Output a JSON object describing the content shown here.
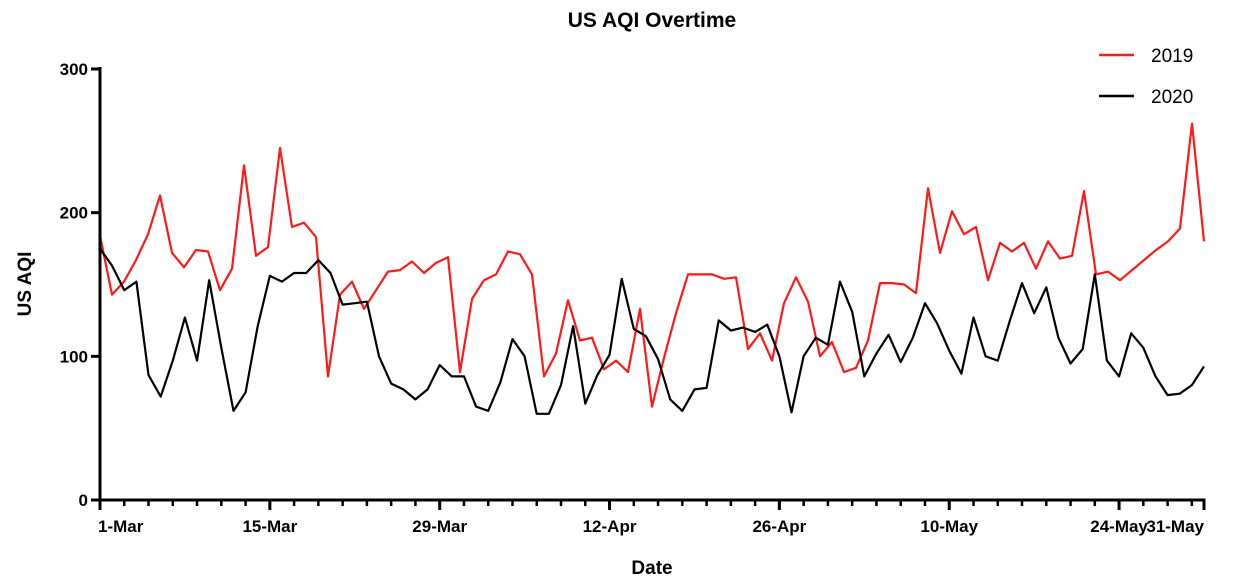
{
  "chart_data": {
    "type": "line",
    "title": "US AQI Overtime",
    "xlabel": "Date",
    "ylabel": "US AQI",
    "ylim": [
      0,
      300
    ],
    "yticks": [
      "0",
      "100",
      "200",
      "300"
    ],
    "x_tick_labels": [
      "1-Mar",
      "15-Mar",
      "29-Mar",
      "12-Apr",
      "26-Apr",
      "10-May",
      "24-May",
      "31-May"
    ],
    "x_tick_days": [
      0,
      14,
      28,
      42,
      56,
      70,
      84,
      91
    ],
    "xlim_days": [
      0,
      91
    ],
    "legend_position": "top-right",
    "colors": {
      "2019": "#ff1a1a",
      "2020": "#000000"
    },
    "series": [
      {
        "name": "2019",
        "values": [
          184,
          143,
          152,
          167,
          185,
          212,
          172,
          162,
          174,
          173,
          146,
          161,
          233,
          170,
          176,
          245,
          190,
          193,
          183,
          86,
          143,
          152,
          133,
          146,
          159,
          160,
          166,
          158,
          165,
          169,
          89,
          140,
          153,
          157,
          173,
          171,
          157,
          86,
          102,
          139,
          111,
          113,
          91,
          97,
          89,
          133,
          65,
          99,
          130,
          157,
          157,
          157,
          154,
          155,
          105,
          116,
          97,
          137,
          155,
          138,
          100,
          110,
          89,
          92,
          111,
          151,
          151,
          150,
          144,
          217,
          172,
          201,
          185,
          190,
          153,
          179,
          173,
          179,
          161,
          180,
          168,
          170,
          215,
          157,
          159,
          153,
          160,
          167,
          174,
          180,
          189,
          262,
          180
        ]
      },
      {
        "name": "2020",
        "values": [
          175,
          163,
          146,
          152,
          87,
          72,
          97,
          127,
          97,
          153,
          106,
          62,
          75,
          121,
          156,
          152,
          158,
          158,
          167,
          158,
          136,
          137,
          138,
          100,
          81,
          77,
          70,
          77,
          94,
          86,
          86,
          65,
          62,
          82,
          112,
          100,
          60,
          60,
          80,
          121,
          67,
          87,
          101,
          154,
          119,
          114,
          98,
          70,
          62,
          77,
          78,
          125,
          118,
          120,
          117,
          122,
          100,
          61,
          100,
          113,
          108,
          152,
          131,
          86,
          102,
          115,
          96,
          113,
          137,
          123,
          104,
          88,
          127,
          100,
          97,
          125,
          151,
          130,
          148,
          113,
          95,
          105,
          157,
          97,
          86,
          116,
          106,
          86,
          73,
          74,
          80,
          93
        ]
      }
    ]
  }
}
